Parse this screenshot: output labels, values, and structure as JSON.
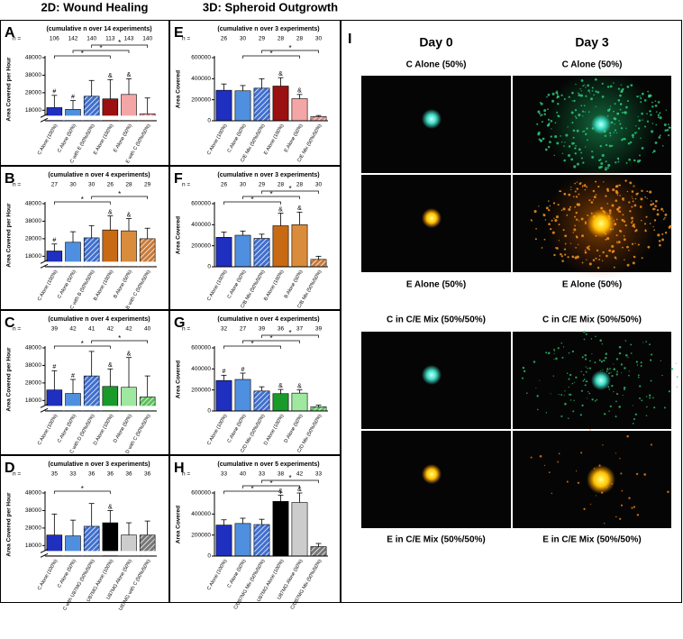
{
  "headers": [
    "2D: Wound Healing",
    "3D: Spheroid Outgrowth"
  ],
  "chart_data": [
    {
      "type": "bar",
      "panel": "A",
      "title": "(cumulative n over 14 experiments)",
      "n_label": "n =",
      "n": [
        106,
        142,
        140,
        113,
        143,
        140
      ],
      "y_label": "Area Covered per Hour",
      "axis_break": true,
      "categories": [
        "C Alone (100%)",
        "C Alone (50%)",
        "C with E (50%/50%)",
        "E Alone (100%)",
        "E Alone (50%)",
        "E with C (50%/50%)"
      ],
      "values": [
        19500,
        18500,
        26000,
        24500,
        27000,
        16000
      ],
      "errors": [
        7000,
        5000,
        9000,
        11000,
        9000,
        9000
      ],
      "markers": [
        "#",
        "#",
        null,
        "&",
        "&",
        null
      ],
      "colors": [
        "#1f2fbf",
        "#4f8fdf",
        "#3f6fcf",
        "#9b1010",
        "#f4a6a6",
        "#d88c8c"
      ],
      "hatched": [
        false,
        false,
        true,
        false,
        false,
        true
      ],
      "brackets": [
        {
          "label": "*",
          "bars": [
            0,
            3
          ]
        },
        {
          "label": "*",
          "bars": [
            1,
            4
          ]
        },
        {
          "label": "*",
          "bars": [
            2,
            5
          ]
        }
      ],
      "ylim": [
        12000,
        48000
      ],
      "yticks": [
        18000,
        28000,
        38000,
        48000
      ]
    },
    {
      "type": "bar",
      "panel": "E",
      "title": "(cumulative n over 3 experiments)",
      "n_label": "n =",
      "n": [
        26,
        30,
        29,
        28,
        28,
        30
      ],
      "y_label": "Area Covered",
      "axis_break": false,
      "categories": [
        "C Alone (100%)",
        "C Alone (50%)",
        "C/E Mix (50%/50%)",
        "E Alone (100%)",
        "E Alone (50%)",
        "C/E Mix (50%/50%)"
      ],
      "values": [
        290000,
        285000,
        310000,
        330000,
        210000,
        40000
      ],
      "errors": [
        60000,
        50000,
        90000,
        80000,
        40000,
        10000
      ],
      "markers": [
        null,
        null,
        null,
        "&",
        "&",
        null
      ],
      "colors": [
        "#1f2fbf",
        "#4f8fdf",
        "#3f6fcf",
        "#9b1010",
        "#f4a6a6",
        "#d88c8c"
      ],
      "hatched": [
        false,
        false,
        true,
        false,
        false,
        true
      ],
      "brackets": [
        {
          "label": "*",
          "bars": [
            1,
            4
          ]
        },
        {
          "label": "*",
          "bars": [
            2,
            5
          ]
        }
      ],
      "ylim": [
        0,
        600000
      ],
      "yticks": [
        0,
        200000,
        400000,
        600000
      ]
    },
    {
      "type": "bar",
      "panel": "B",
      "title": "(cumulative n over 4 experiments)",
      "n_label": "n =",
      "n": [
        27,
        30,
        30,
        26,
        28,
        29
      ],
      "y_label": "Area Covered per Hour",
      "axis_break": true,
      "categories": [
        "C Alone (100%)",
        "C Alone (50%)",
        "C with B (50%/50%)",
        "B Alone (100%)",
        "B Alone (50%)",
        "B with C (50%/50%)"
      ],
      "values": [
        21000,
        26000,
        28500,
        33000,
        32500,
        28000
      ],
      "errors": [
        4000,
        6000,
        7000,
        8000,
        7000,
        6000
      ],
      "markers": [
        "#",
        null,
        null,
        "&",
        "&",
        null
      ],
      "colors": [
        "#1f2fbf",
        "#4f8fdf",
        "#3f6fcf",
        "#c86a14",
        "#d98c3c",
        "#c87a3a"
      ],
      "hatched": [
        false,
        false,
        true,
        false,
        false,
        true
      ],
      "brackets": [
        {
          "label": "*",
          "bars": [
            0,
            3
          ]
        },
        {
          "label": "*",
          "bars": [
            2,
            5
          ]
        }
      ],
      "ylim": [
        12000,
        48000
      ],
      "yticks": [
        18000,
        28000,
        38000,
        48000
      ]
    },
    {
      "type": "bar",
      "panel": "F",
      "title": "(cumulative n over 3 experiments)",
      "n_label": "n =",
      "n": [
        26,
        30,
        29,
        28,
        28,
        30
      ],
      "y_label": "Area Covered",
      "axis_break": false,
      "categories": [
        "C Alone (100%)",
        "C Alone (50%)",
        "C/B Mix (50%/50%)",
        "B Alone (100%)",
        "B Alone (50%)",
        "C/B Mix (50%/50%)"
      ],
      "values": [
        280000,
        300000,
        270000,
        390000,
        400000,
        70000
      ],
      "errors": [
        50000,
        40000,
        40000,
        120000,
        120000,
        30000
      ],
      "markers": [
        null,
        null,
        null,
        "&",
        "&",
        null
      ],
      "colors": [
        "#1f2fbf",
        "#4f8fdf",
        "#3f6fcf",
        "#c86a14",
        "#d98c3c",
        "#c87a3a"
      ],
      "hatched": [
        false,
        false,
        true,
        false,
        false,
        true
      ],
      "brackets": [
        {
          "label": "*",
          "bars": [
            0,
            3
          ]
        },
        {
          "label": "*",
          "bars": [
            1,
            4
          ]
        },
        {
          "label": "*",
          "bars": [
            2,
            5
          ]
        }
      ],
      "ylim": [
        0,
        600000
      ],
      "yticks": [
        0,
        200000,
        400000,
        600000
      ]
    },
    {
      "type": "bar",
      "panel": "C",
      "title": "(cumulative n over 4 experiments)",
      "n_label": "n =",
      "n": [
        39,
        42,
        41,
        42,
        42,
        40
      ],
      "y_label": "Area Covered per Hour",
      "axis_break": true,
      "categories": [
        "C Alone (100%)",
        "C Alone (50%)",
        "C with D (50%/50%)",
        "D Alone (100%)",
        "D Alone (50%)",
        "D with C (50%/50%)"
      ],
      "values": [
        24000,
        22000,
        32000,
        26000,
        25500,
        20000
      ],
      "errors": [
        11000,
        8000,
        14000,
        10000,
        17000,
        12000
      ],
      "markers": [
        "#",
        "#",
        null,
        "&",
        "&",
        null
      ],
      "colors": [
        "#1f2fbf",
        "#4f8fdf",
        "#3f6fcf",
        "#1a9a2a",
        "#9fe89f",
        "#5cc05c"
      ],
      "hatched": [
        false,
        false,
        true,
        false,
        false,
        true
      ],
      "brackets": [
        {
          "label": "*",
          "bars": [
            0,
            3
          ]
        },
        {
          "label": "*",
          "bars": [
            2,
            5
          ]
        }
      ],
      "ylim": [
        12000,
        48000
      ],
      "yticks": [
        18000,
        28000,
        38000,
        48000
      ]
    },
    {
      "type": "bar",
      "panel": "G",
      "title": "(cumulative n over 4 experiments)",
      "n_label": "n =",
      "n": [
        32,
        27,
        39,
        36,
        37,
        39
      ],
      "y_label": "Area Covered",
      "axis_break": false,
      "categories": [
        "C Alone (100%)",
        "C Alone (50%)",
        "C/D Mix (50%/50%)",
        "D Alone (100%)",
        "D Alone (50%)",
        "C/D Mix (50%/50%)"
      ],
      "values": [
        290000,
        300000,
        190000,
        165000,
        170000,
        40000
      ],
      "errors": [
        50000,
        60000,
        40000,
        40000,
        30000,
        15000
      ],
      "markers": [
        "#",
        "#",
        null,
        "&",
        "&",
        null
      ],
      "colors": [
        "#1f2fbf",
        "#4f8fdf",
        "#3f6fcf",
        "#1a9a2a",
        "#9fe89f",
        "#5cc05c"
      ],
      "hatched": [
        false,
        false,
        true,
        false,
        false,
        true
      ],
      "brackets": [
        {
          "label": "*",
          "bars": [
            0,
            3
          ]
        },
        {
          "label": "*",
          "bars": [
            1,
            4
          ]
        },
        {
          "label": "*",
          "bars": [
            2,
            5
          ]
        }
      ],
      "ylim": [
        0,
        600000
      ],
      "yticks": [
        0,
        200000,
        400000,
        600000
      ]
    },
    {
      "type": "bar",
      "panel": "D",
      "title": "(cumulative n over 3 experiments)",
      "n_label": "n =",
      "n": [
        35,
        33,
        36,
        36,
        36,
        36
      ],
      "y_label": "Area Covered per Hour",
      "axis_break": true,
      "categories": [
        "C Alone (100%)",
        "C Alone (50%)",
        "C with U87MG (50%/50%)",
        "U87MG Alone (100%)",
        "U87MG Alone (50%)",
        "U87MG with C (50%/50%)"
      ],
      "values": [
        24000,
        23500,
        29000,
        31000,
        24000,
        24000
      ],
      "errors": [
        12000,
        9000,
        13000,
        7000,
        7000,
        8000
      ],
      "markers": [
        null,
        null,
        null,
        "&",
        null,
        null
      ],
      "colors": [
        "#1f2fbf",
        "#4f8fdf",
        "#3f6fcf",
        "#000000",
        "#cccccc",
        "#777777"
      ],
      "hatched": [
        false,
        false,
        true,
        false,
        false,
        true
      ],
      "brackets": [
        {
          "label": "*",
          "bars": [
            0,
            3
          ]
        }
      ],
      "ylim": [
        12000,
        48000
      ],
      "yticks": [
        18000,
        28000,
        38000,
        48000
      ]
    },
    {
      "type": "bar",
      "panel": "H",
      "title": "(cumulative n over 5 experiments)",
      "n_label": "n =",
      "n": [
        33,
        40,
        33,
        38,
        42,
        33
      ],
      "y_label": "Area Covered",
      "axis_break": false,
      "categories": [
        "C Alone (100%)",
        "C Alone (50%)",
        "C/U87MG Mix (50%/50%)",
        "U87MG Alone (100%)",
        "U87MG Alone (50%)",
        "C/U87MG Mix (50%/50%)"
      ],
      "values": [
        295000,
        310000,
        300000,
        520000,
        510000,
        90000
      ],
      "errors": [
        50000,
        50000,
        50000,
        60000,
        90000,
        30000
      ],
      "markers": [
        null,
        null,
        null,
        "&",
        "&",
        null
      ],
      "colors": [
        "#1f2fbf",
        "#4f8fdf",
        "#3f6fcf",
        "#000000",
        "#cccccc",
        "#777777"
      ],
      "hatched": [
        false,
        false,
        true,
        false,
        false,
        true
      ],
      "brackets": [
        {
          "label": "*",
          "bars": [
            0,
            3
          ]
        },
        {
          "label": "*",
          "bars": [
            1,
            4
          ]
        },
        {
          "label": "*",
          "bars": [
            2,
            5
          ]
        }
      ],
      "ylim": [
        0,
        600000
      ],
      "yticks": [
        0,
        200000,
        400000,
        600000
      ]
    }
  ],
  "image_panel": {
    "letter": "I",
    "days": [
      "Day 0",
      "Day 3"
    ],
    "captions": [
      [
        "C Alone (50%)",
        "C Alone (50%)"
      ],
      [
        "E Alone (50%)",
        "E Alone (50%)"
      ],
      [
        "C in C/E Mix (50%/50%)",
        "C in C/E Mix (50%/50%)"
      ],
      [
        "E in C/E Mix (50%/50%)",
        "E in C/E Mix (50%/50%)"
      ]
    ]
  }
}
